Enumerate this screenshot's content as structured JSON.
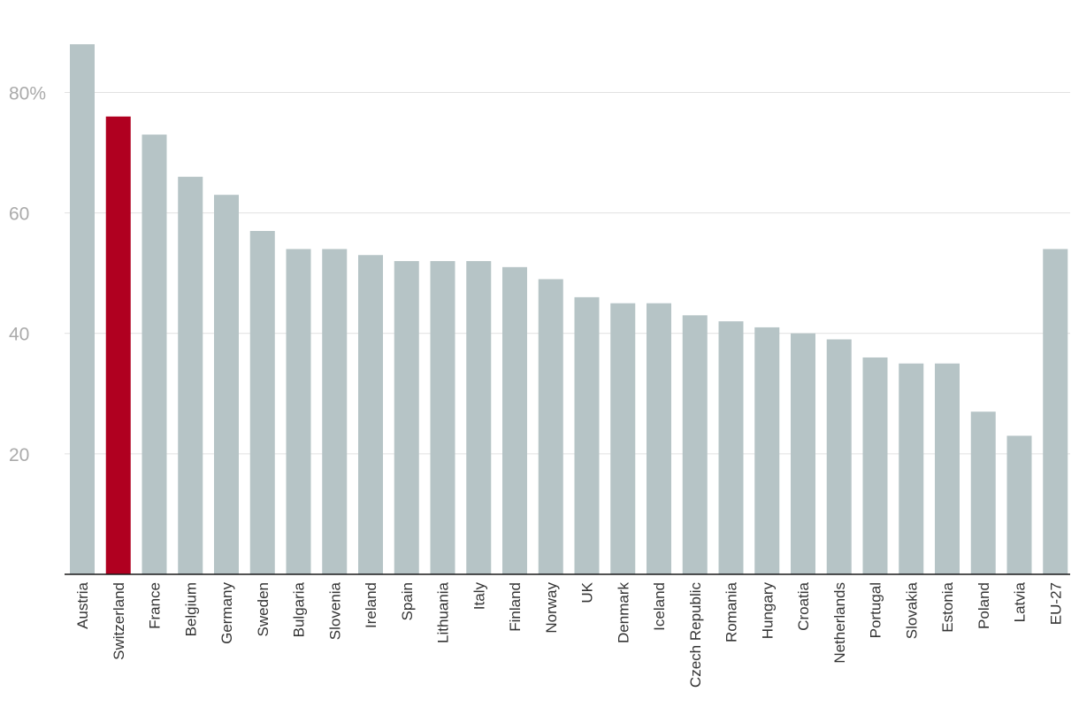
{
  "chart_data": {
    "type": "bar",
    "title": "",
    "xlabel": "",
    "ylabel": "",
    "ylim": [
      0,
      88
    ],
    "y_ticks": [
      {
        "value": 20,
        "label": "20"
      },
      {
        "value": 40,
        "label": "40"
      },
      {
        "value": 60,
        "label": "60"
      },
      {
        "value": 80,
        "label": "80%"
      }
    ],
    "grid": true,
    "legend": "none",
    "categories": [
      "Austria",
      "Switzerland",
      "France",
      "Belgium",
      "Germany",
      "Sweden",
      "Bulgaria",
      "Slovenia",
      "Ireland",
      "Spain",
      "Lithuania",
      "Italy",
      "Finland",
      "Norway",
      "UK",
      "Denmark",
      "Iceland",
      "Czech Republic",
      "Romania",
      "Hungary",
      "Croatia",
      "Netherlands",
      "Portugal",
      "Slovakia",
      "Estonia",
      "Poland",
      "Latvia",
      "EU-27"
    ],
    "values": [
      88,
      76,
      73,
      66,
      63,
      57,
      54,
      54,
      53,
      52,
      52,
      52,
      51,
      49,
      46,
      45,
      45,
      43,
      42,
      41,
      40,
      39,
      36,
      35,
      35,
      27,
      23,
      54
    ],
    "highlight_category": "Switzerland",
    "colors": {
      "bar": "#b6c4c6",
      "highlight": "#b00020",
      "grid": "#e1e1e1",
      "axis": "#1a1a1a",
      "y_tick_text": "#aaaaaa",
      "x_tick_text": "#333333"
    }
  }
}
